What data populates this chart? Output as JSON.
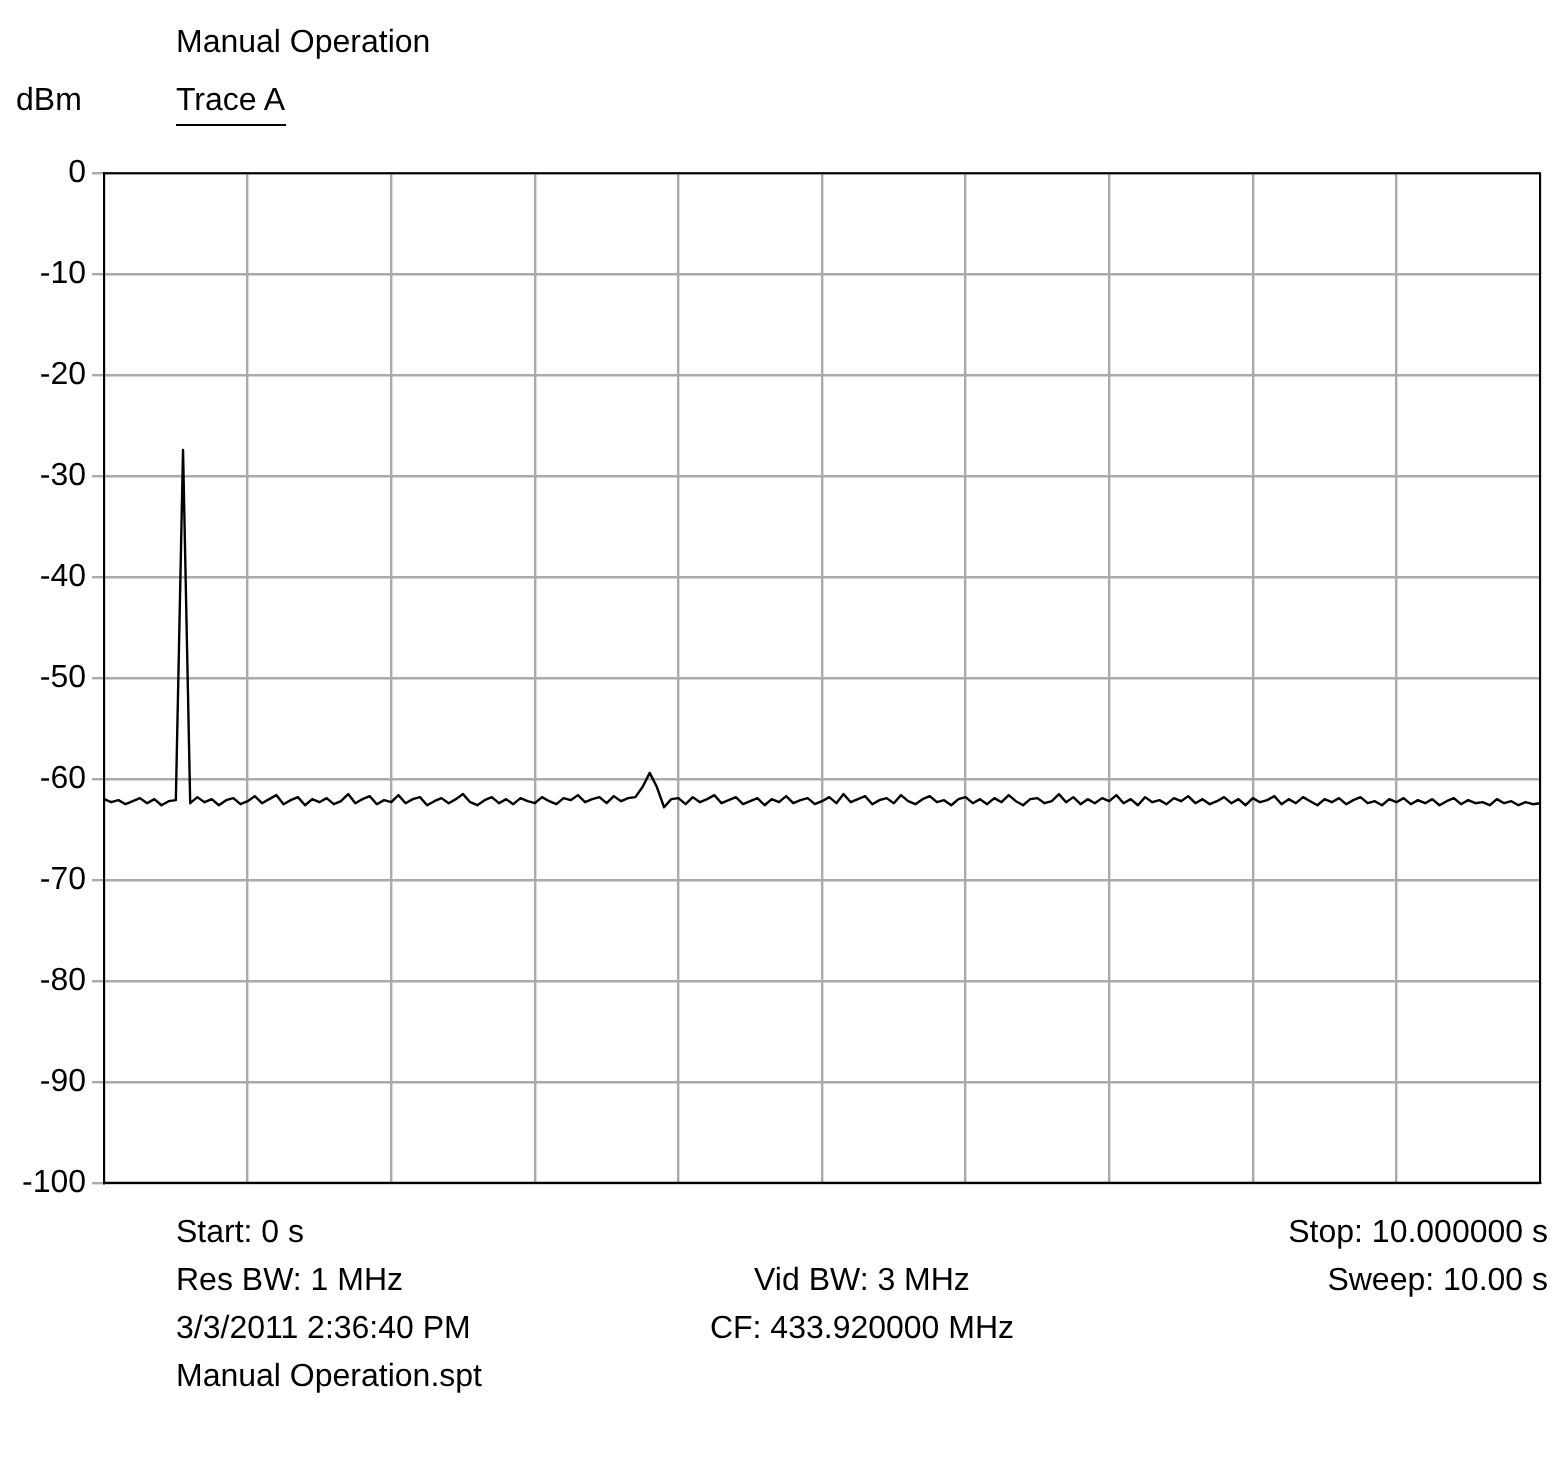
{
  "chart_data": {
    "type": "line",
    "title": "Manual Operation",
    "subtitle": "Trace A",
    "ylabel": "dBm",
    "categories": [
      null,
      null,
      null,
      null,
      null,
      null,
      null,
      null,
      null,
      null,
      null,
      null,
      null,
      null,
      null,
      null,
      null,
      null,
      null,
      null,
      null,
      null,
      null,
      null,
      null,
      null,
      null,
      null,
      null,
      null,
      null,
      null,
      null,
      null,
      null,
      null,
      null,
      null,
      null,
      null,
      null,
      null,
      null,
      null,
      null,
      null,
      null,
      null,
      null,
      null,
      null,
      null,
      null,
      null,
      null,
      null,
      null,
      null,
      null,
      null,
      null,
      null,
      null,
      null,
      null,
      null,
      null,
      null,
      null,
      null,
      null,
      null,
      null,
      null,
      null,
      null,
      null,
      null,
      null,
      null,
      null,
      null,
      null,
      null,
      null,
      null,
      null,
      null,
      null,
      null,
      null,
      null,
      null,
      null,
      null,
      null,
      null,
      null,
      null,
      null,
      null,
      null,
      null,
      null,
      null,
      null,
      null,
      null,
      null,
      null,
      null,
      null,
      null,
      null,
      null,
      null,
      null,
      null,
      null,
      null,
      null,
      null,
      null,
      null,
      null,
      null,
      null,
      null,
      null,
      null,
      null,
      null,
      null,
      null,
      null,
      null,
      null,
      null,
      null,
      null,
      null,
      null,
      null,
      null,
      null,
      null,
      null,
      null,
      null,
      null,
      null,
      null,
      null,
      null,
      null,
      null,
      null,
      null,
      null,
      null,
      null,
      null,
      null,
      null,
      null,
      null,
      null,
      null,
      null,
      null,
      null,
      null,
      null,
      null,
      null,
      null,
      null,
      null,
      null,
      null,
      null,
      null,
      null,
      null,
      null,
      null,
      null,
      null,
      null,
      null,
      null,
      null,
      null,
      null,
      null,
      null,
      null,
      null,
      null,
      null,
      null
    ],
    "series": [
      {
        "color": "#000000",
        "values": [
          -62.0,
          -62.3,
          -62.1,
          -62.5,
          -62.2,
          -61.9,
          -62.4,
          -62.0,
          -62.6,
          -62.2,
          -62.1,
          -27.4,
          -62.4,
          -61.8,
          -62.3,
          -62.0,
          -62.6,
          -62.1,
          -61.9,
          -62.5,
          -62.2,
          -61.7,
          -62.4,
          -62.0,
          -61.6,
          -62.5,
          -62.1,
          -61.8,
          -62.6,
          -62.0,
          -62.3,
          -61.9,
          -62.5,
          -62.2,
          -61.5,
          -62.4,
          -62.0,
          -61.7,
          -62.5,
          -62.1,
          -62.3,
          -61.6,
          -62.4,
          -62.0,
          -61.8,
          -62.6,
          -62.2,
          -61.9,
          -62.4,
          -62.0,
          -61.5,
          -62.3,
          -62.6,
          -62.1,
          -61.8,
          -62.4,
          -62.0,
          -62.5,
          -61.9,
          -62.2,
          -62.4,
          -61.8,
          -62.2,
          -62.5,
          -61.9,
          -62.1,
          -61.6,
          -62.3,
          -62.0,
          -61.8,
          -62.4,
          -61.7,
          -62.2,
          -61.9,
          -61.8,
          -60.8,
          -59.4,
          -60.8,
          -62.8,
          -62.0,
          -61.9,
          -62.5,
          -61.8,
          -62.3,
          -62.0,
          -61.6,
          -62.4,
          -62.1,
          -61.8,
          -62.5,
          -62.2,
          -61.9,
          -62.6,
          -62.0,
          -62.3,
          -61.7,
          -62.4,
          -62.1,
          -61.9,
          -62.5,
          -62.2,
          -61.8,
          -62.4,
          -61.5,
          -62.3,
          -62.0,
          -61.7,
          -62.5,
          -62.1,
          -61.9,
          -62.4,
          -61.6,
          -62.2,
          -62.5,
          -62.0,
          -61.7,
          -62.3,
          -62.1,
          -62.6,
          -62.0,
          -61.8,
          -62.4,
          -62.0,
          -62.5,
          -61.9,
          -62.3,
          -61.6,
          -62.2,
          -62.6,
          -62.0,
          -61.9,
          -62.4,
          -62.2,
          -61.5,
          -62.3,
          -61.8,
          -62.5,
          -62.0,
          -62.4,
          -61.9,
          -62.2,
          -61.6,
          -62.4,
          -62.0,
          -62.6,
          -61.8,
          -62.3,
          -62.1,
          -62.5,
          -61.9,
          -62.2,
          -61.7,
          -62.4,
          -62.0,
          -62.5,
          -62.2,
          -61.8,
          -62.4,
          -62.0,
          -62.6,
          -61.9,
          -62.3,
          -62.1,
          -61.7,
          -62.5,
          -62.0,
          -62.4,
          -61.8,
          -62.2,
          -62.6,
          -62.0,
          -62.3,
          -61.9,
          -62.5,
          -62.1,
          -61.8,
          -62.4,
          -62.2,
          -62.6,
          -62.0,
          -62.3,
          -61.9,
          -62.5,
          -62.1,
          -62.4,
          -62.0,
          -62.6,
          -62.2,
          -61.9,
          -62.5,
          -62.1,
          -62.4,
          -62.3,
          -62.6,
          -62.0,
          -62.4,
          -62.2,
          -62.6,
          -62.3,
          -62.5,
          -62.4
        ]
      }
    ],
    "ylim": [
      -100,
      0
    ],
    "yticks": [
      0,
      -10,
      -20,
      -30,
      -40,
      -50,
      -60,
      -70,
      -80,
      -90,
      -100
    ],
    "grid": true,
    "legend": false,
    "marker": "none",
    "line_style": "solid",
    "tick_labels": "y",
    "annotations": [
      "Start: 0 s",
      "Stop: 10.000000 s",
      "Res BW: 1 MHz",
      "Vid BW: 3 MHz",
      "Sweep: 10.00 s",
      "3/3/2011 2:36:40 PM",
      "CF: 433.920000 MHz",
      "Manual Operation.spt"
    ]
  }
}
